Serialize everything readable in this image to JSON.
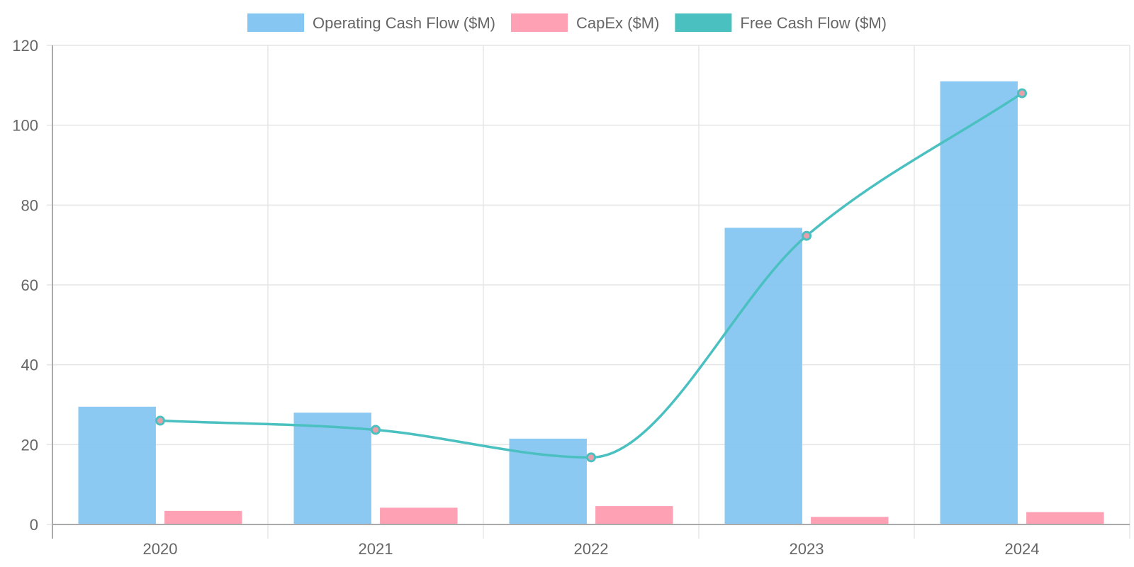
{
  "chart_data": {
    "type": "bar",
    "categories": [
      "2020",
      "2021",
      "2022",
      "2023",
      "2024"
    ],
    "series": [
      {
        "name": "Operating Cash Flow ($M)",
        "type": "bar",
        "color": "#85c6f2",
        "values": [
          29.5,
          28.0,
          21.5,
          74.3,
          111.0
        ]
      },
      {
        "name": "CapEx ($M)",
        "type": "bar",
        "color": "#ffa1b5",
        "values": [
          3.4,
          4.2,
          4.6,
          1.9,
          3.1
        ]
      },
      {
        "name": "Free Cash Flow ($M)",
        "type": "line",
        "color": "#4bc0c0",
        "values": [
          26.0,
          23.7,
          16.8,
          72.3,
          108.0
        ]
      }
    ],
    "ylim": [
      0,
      120
    ],
    "yticks": [
      0,
      20,
      40,
      60,
      80,
      100,
      120
    ],
    "grid": true,
    "legend_position": "top",
    "title": "",
    "xlabel": "",
    "ylabel": ""
  }
}
